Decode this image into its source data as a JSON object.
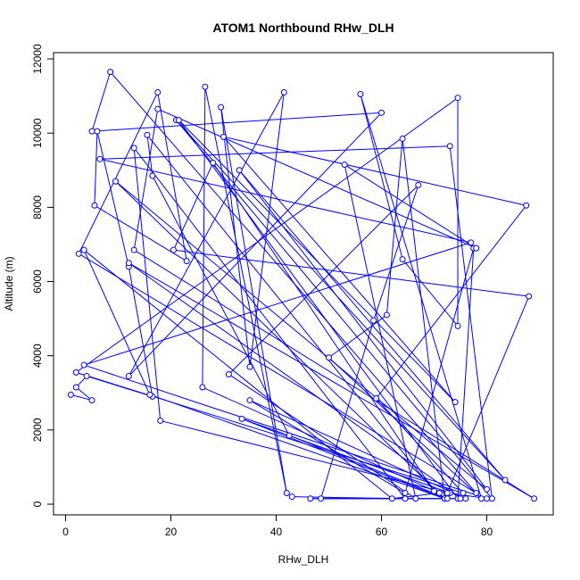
{
  "chart_data": {
    "type": "line",
    "title": "ATOM1 Northbound RHw_DLH",
    "xlabel": "RHw_DLH",
    "ylabel": "Altitude (m)",
    "xlim": [
      0,
      92
    ],
    "ylim": [
      0,
      12000
    ],
    "x_ticks": [
      "0",
      "20",
      "40",
      "60",
      "80"
    ],
    "y_ticks": [
      "0",
      "2000",
      "4000",
      "6000",
      "8000",
      "10000",
      "12000"
    ],
    "grid": false,
    "legend": "none",
    "series": [
      {
        "color": "#0000ff",
        "marker": "open-circle",
        "x": [
          1,
          5,
          2,
          4,
          16.5,
          12,
          6,
          5.5,
          23,
          17.5,
          2.5,
          78,
          8.5,
          5,
          60,
          12,
          41.5,
          35,
          29.5,
          42,
          26.5,
          26,
          71,
          62,
          3.5,
          16,
          72,
          9.5,
          80,
          33,
          83.5,
          21,
          81,
          73,
          6.5,
          77,
          3.5,
          80,
          73,
          33.5,
          72,
          64,
          61,
          50,
          79,
          56,
          64,
          74.5,
          74.5,
          2,
          75.5,
          59,
          87.5,
          30,
          74,
          21.5,
          74.5,
          77.5,
          64.5,
          35,
          76,
          48.5,
          58.5,
          67,
          31,
          66.5,
          53,
          78,
          17.5,
          13,
          89,
          12,
          75,
          46.5,
          72.5,
          42.5,
          16.5,
          15.5,
          70,
          28,
          20.5,
          88,
          72.5,
          18,
          13,
          64.5,
          43
        ],
        "y": [
          2950,
          2800,
          3150,
          3450,
          2900,
          6400,
          10050,
          8050,
          6550,
          11100,
          6750,
          300,
          11650,
          10050,
          10550,
          3450,
          11100,
          3700,
          10700,
          300,
          11250,
          3150,
          300,
          150,
          6850,
          2950,
          150,
          8700,
          400,
          9000,
          650,
          10350,
          150,
          9650,
          9300,
          7050,
          3750,
          150,
          300,
          2300,
          150,
          9850,
          5100,
          3950,
          150,
          11050,
          6600,
          4800,
          10950,
          3550,
          300,
          2850,
          8050,
          9900,
          2750,
          10350,
          150,
          6900,
          300,
          2800,
          150,
          150,
          4950,
          8600,
          3500,
          150,
          9150,
          6900,
          10650,
          6850,
          150,
          6500,
          150,
          150,
          150,
          1850,
          8850,
          9950,
          350,
          9200,
          6850,
          5600,
          300,
          2250,
          9600,
          150,
          200
        ]
      }
    ]
  }
}
